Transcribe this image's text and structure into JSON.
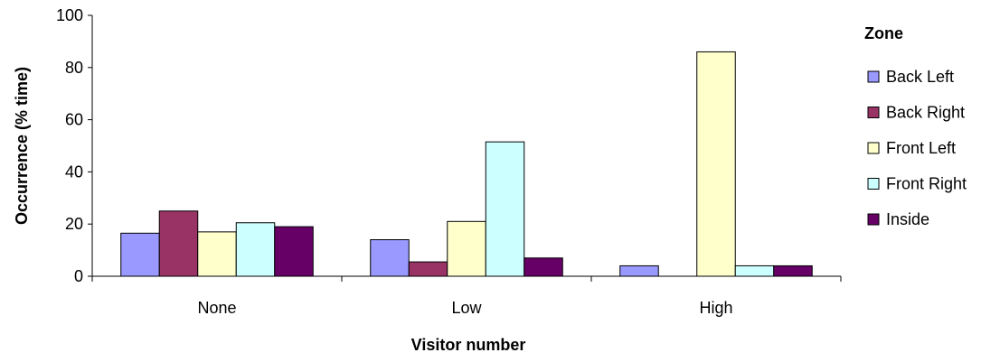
{
  "chart_data": {
    "type": "bar",
    "categories": [
      "None",
      "Low",
      "High"
    ],
    "series": [
      {
        "name": "Back Left",
        "color": "#9999ff",
        "values": [
          16.5,
          14,
          4
        ]
      },
      {
        "name": "Back Right",
        "color": "#993366",
        "values": [
          25,
          5.5,
          0
        ]
      },
      {
        "name": "Front Left",
        "color": "#ffffcc",
        "values": [
          17,
          21,
          86
        ]
      },
      {
        "name": "Front Right",
        "color": "#ccffff",
        "values": [
          20.5,
          51.5,
          4
        ]
      },
      {
        "name": "Inside",
        "color": "#660066",
        "values": [
          19,
          7,
          4
        ]
      }
    ],
    "xlabel": "Visitor number",
    "ylabel": "Occurrence (% time)",
    "ylim": [
      0,
      100
    ],
    "yticks": [
      0,
      20,
      40,
      60,
      80,
      100
    ],
    "legend_title": "Zone",
    "legend_position": "right",
    "grid": false
  }
}
